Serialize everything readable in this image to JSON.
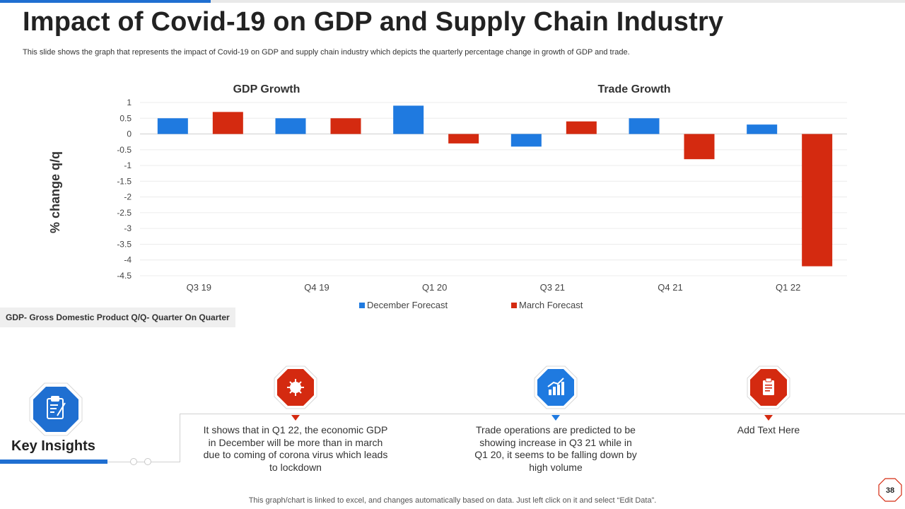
{
  "header": {
    "title": "Impact of Covid-19 on GDP and Supply Chain Industry",
    "subtitle": "This slide shows the graph that represents the impact of Covid-19 on GDP and supply chain industry which depicts the quarterly percentage change in growth of GDP and trade."
  },
  "chart_data": {
    "type": "bar",
    "ylabel": "% change q/q",
    "ylim": [
      -4.5,
      1
    ],
    "yticks": [
      "1",
      "0.5",
      "0",
      "-0.5",
      "-1",
      "-1.5",
      "-2",
      "-2.5",
      "-3",
      "-3.5",
      "-4",
      "-4.5"
    ],
    "categories": [
      "Q3 19",
      "Q4 19",
      "Q1 20",
      "Q3 21",
      "Q4 21",
      "Q1 22"
    ],
    "group_titles": [
      "GDP Growth",
      "Trade Growth"
    ],
    "series": [
      {
        "name": "December Forecast",
        "color": "#1f7ae0",
        "values": [
          0.5,
          0.5,
          0.9,
          -0.4,
          0.5,
          0.3
        ]
      },
      {
        "name": "March Forecast",
        "color": "#d42a10",
        "values": [
          0.7,
          0.5,
          -0.3,
          0.4,
          -0.8,
          -4.2
        ]
      }
    ],
    "grid": true,
    "legend_position": "bottom"
  },
  "abbreviation": "GDP- Gross Domestic Product Q/Q- Quarter On Quarter",
  "insights": {
    "title": "Key Insights",
    "items": [
      {
        "icon": "virus-icon",
        "color": "#d42a10",
        "text": "It shows that in Q1 22, the economic GDP in December will be more than in march due to coming of corona virus which leads to lockdown"
      },
      {
        "icon": "growth-chart-icon",
        "color": "#1f7ae0",
        "text": "Trade operations are predicted to be showing increase in Q3 21 while in Q1 20, it seems to be falling down by high volume"
      },
      {
        "icon": "clipboard-icon",
        "color": "#d42a10",
        "text": "Add Text Here"
      }
    ]
  },
  "footer": "This graph/chart is linked to excel,  and changes automatically based on data. Just left click on it and select “Edit Data”.",
  "page_number": "38"
}
